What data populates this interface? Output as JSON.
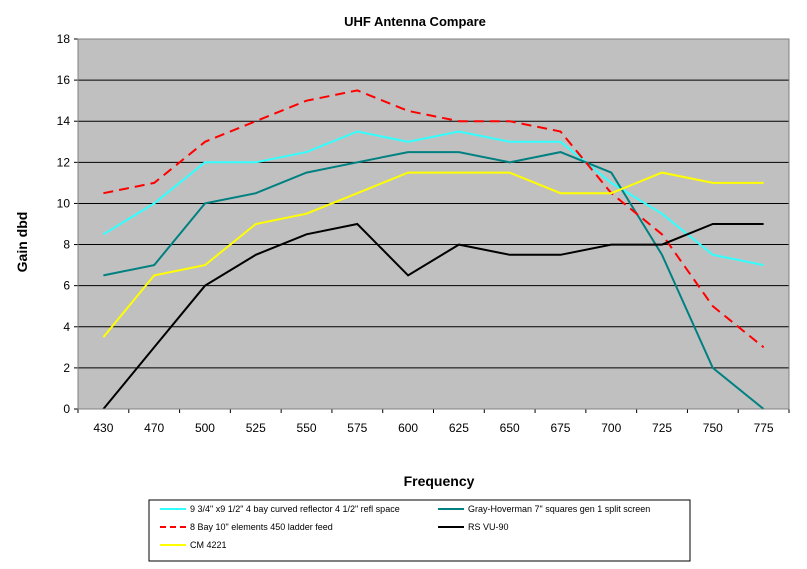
{
  "chart_data": {
    "type": "line",
    "title": "UHF Antenna Compare",
    "xlabel": "Frequency",
    "ylabel": "Gain dbd",
    "categories": [
      "430",
      "470",
      "500",
      "525",
      "550",
      "575",
      "600",
      "625",
      "650",
      "675",
      "700",
      "725",
      "750",
      "775"
    ],
    "ylim": [
      0,
      18
    ],
    "yticks": [
      0,
      2,
      4,
      6,
      8,
      10,
      12,
      14,
      16,
      18
    ],
    "grid": true,
    "plot_background": "#c0c0c0",
    "legend_position": "bottom",
    "series": [
      {
        "name": "9 3/4\" x9 1/2\" 4 bay curved reflector 4 1/2\" refl space",
        "color": "#33ffff",
        "dashed": false,
        "values": [
          8.5,
          10,
          12,
          12,
          12.5,
          13.5,
          13,
          13.5,
          13,
          13,
          11,
          9.5,
          7.5,
          7
        ]
      },
      {
        "name": "Gray-Hoverman 7\" squares gen 1 split screen",
        "color": "#008080",
        "dashed": false,
        "values": [
          6.5,
          7,
          10,
          10.5,
          11.5,
          12,
          12.5,
          12.5,
          12,
          12.5,
          11.5,
          7.5,
          2,
          0
        ]
      },
      {
        "name": "8 Bay 10\" elements 450 ladder feed",
        "color": "#ff0000",
        "dashed": true,
        "values": [
          10.5,
          11,
          13,
          14,
          15,
          15.5,
          14.5,
          14,
          14,
          13.5,
          10.5,
          8.5,
          5,
          3
        ]
      },
      {
        "name": "RS VU-90",
        "color": "#000000",
        "dashed": false,
        "values": [
          0,
          3,
          6,
          7.5,
          8.5,
          9,
          6.5,
          8,
          7.5,
          7.5,
          8,
          8,
          9,
          9
        ]
      },
      {
        "name": "CM 4221",
        "color": "#ffff00",
        "dashed": false,
        "values": [
          3.5,
          6.5,
          7,
          9,
          9.5,
          10.5,
          11.5,
          11.5,
          11.5,
          10.5,
          10.5,
          11.5,
          11,
          11
        ]
      }
    ]
  }
}
